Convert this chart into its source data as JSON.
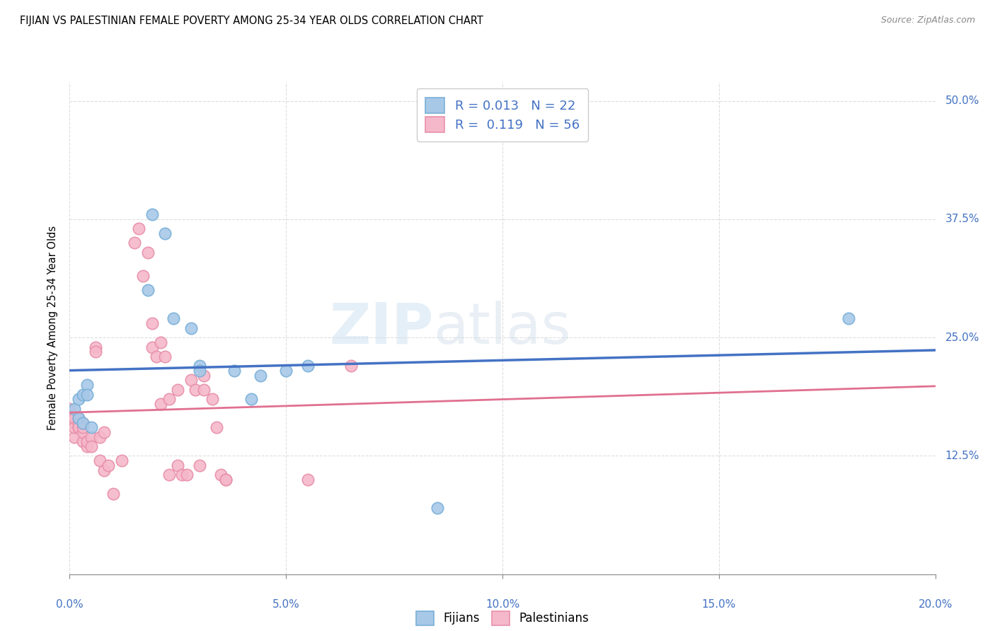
{
  "title": "FIJIAN VS PALESTINIAN FEMALE POVERTY AMONG 25-34 YEAR OLDS CORRELATION CHART",
  "source": "Source: ZipAtlas.com",
  "ylabel_label": "Female Poverty Among 25-34 Year Olds",
  "xlim": [
    0.0,
    0.2
  ],
  "ylim": [
    0.0,
    0.52
  ],
  "fijian_color": "#a8c8e8",
  "palestinian_color": "#f5b8ca",
  "fijian_edge": "#7ab0d8",
  "palestinian_edge": "#e890aa",
  "trend_fijian_color": "#4472c4",
  "trend_palestinian_color": "#e07090",
  "legend_R_fijian": "0.013",
  "legend_N_fijian": "22",
  "legend_R_palestinian": "0.119",
  "legend_N_palestinian": "56",
  "fijians_x": [
    0.001,
    0.002,
    0.002,
    0.003,
    0.003,
    0.004,
    0.004,
    0.005,
    0.018,
    0.019,
    0.022,
    0.024,
    0.028,
    0.03,
    0.03,
    0.038,
    0.042,
    0.044,
    0.05,
    0.055,
    0.085,
    0.18
  ],
  "fijians_y": [
    0.175,
    0.165,
    0.185,
    0.19,
    0.16,
    0.2,
    0.19,
    0.155,
    0.3,
    0.38,
    0.36,
    0.27,
    0.26,
    0.22,
    0.215,
    0.215,
    0.185,
    0.21,
    0.215,
    0.22,
    0.07,
    0.27
  ],
  "palestinians_x": [
    0.0,
    0.0,
    0.001,
    0.001,
    0.001,
    0.001,
    0.002,
    0.002,
    0.002,
    0.002,
    0.002,
    0.003,
    0.003,
    0.003,
    0.003,
    0.004,
    0.004,
    0.005,
    0.005,
    0.006,
    0.006,
    0.007,
    0.007,
    0.008,
    0.008,
    0.009,
    0.01,
    0.012,
    0.015,
    0.016,
    0.017,
    0.018,
    0.019,
    0.019,
    0.02,
    0.021,
    0.021,
    0.022,
    0.023,
    0.023,
    0.025,
    0.025,
    0.026,
    0.027,
    0.028,
    0.029,
    0.03,
    0.031,
    0.031,
    0.033,
    0.034,
    0.035,
    0.036,
    0.036,
    0.055,
    0.065
  ],
  "palestinians_y": [
    0.175,
    0.165,
    0.145,
    0.16,
    0.165,
    0.155,
    0.155,
    0.155,
    0.16,
    0.155,
    0.165,
    0.14,
    0.15,
    0.155,
    0.16,
    0.135,
    0.14,
    0.145,
    0.135,
    0.24,
    0.235,
    0.145,
    0.12,
    0.15,
    0.11,
    0.115,
    0.085,
    0.12,
    0.35,
    0.365,
    0.315,
    0.34,
    0.265,
    0.24,
    0.23,
    0.245,
    0.18,
    0.23,
    0.185,
    0.105,
    0.195,
    0.115,
    0.105,
    0.105,
    0.205,
    0.195,
    0.115,
    0.21,
    0.195,
    0.185,
    0.155,
    0.105,
    0.1,
    0.1,
    0.1,
    0.22
  ],
  "watermark_zip": "ZIP",
  "watermark_atlas": "atlas",
  "background_color": "#ffffff",
  "grid_color": "#dddddd",
  "label_color": "#4472c4"
}
